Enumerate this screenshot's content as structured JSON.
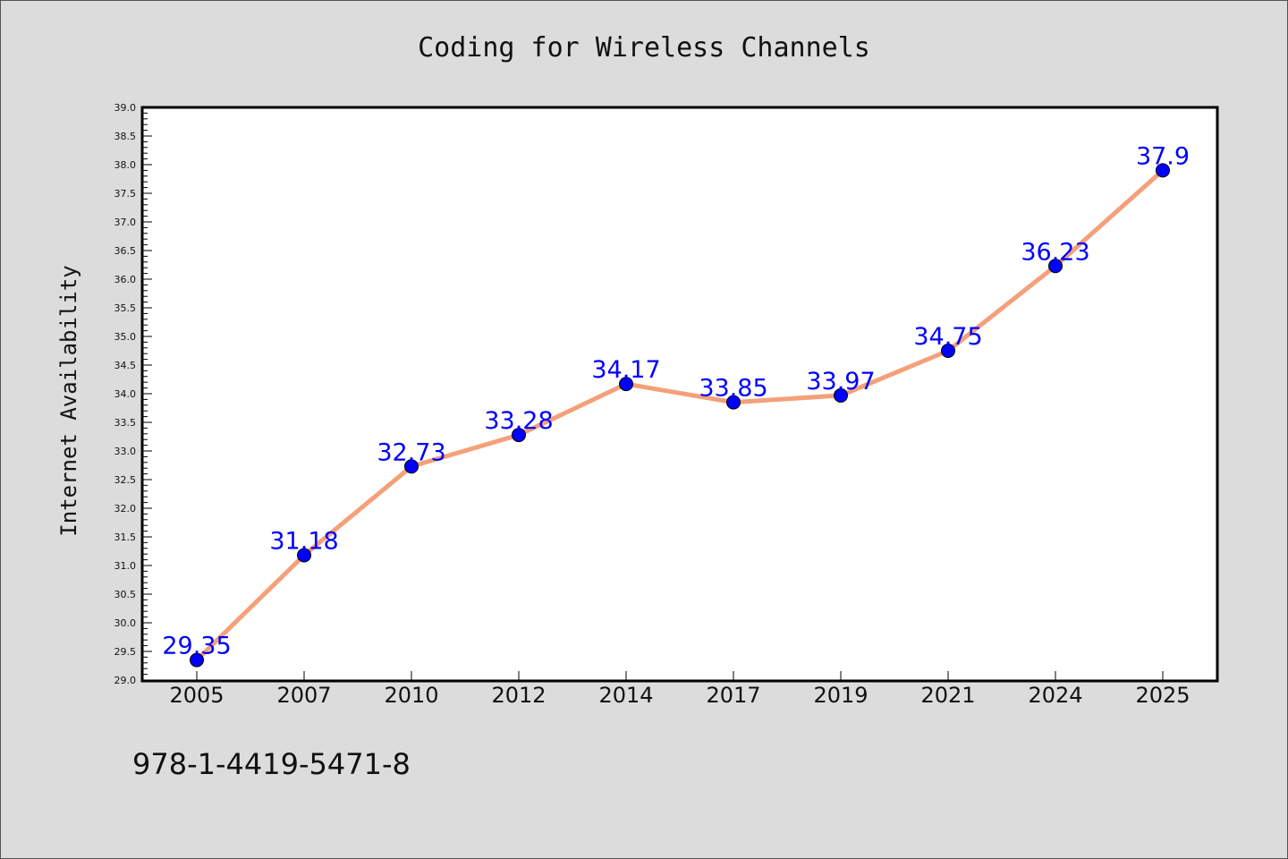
{
  "chart_data": {
    "type": "line",
    "title": "Coding for Wireless Channels",
    "xlabel": "",
    "ylabel": "Internet Availability",
    "categories": [
      "2005",
      "2007",
      "2010",
      "2012",
      "2014",
      "2017",
      "2019",
      "2021",
      "2024",
      "2025"
    ],
    "values": [
      29.35,
      31.18,
      32.73,
      33.28,
      34.17,
      33.85,
      33.97,
      34.75,
      36.23,
      37.9
    ],
    "data_labels": [
      "29.35",
      "31.18",
      "32.73",
      "33.28",
      "34.17",
      "33.85",
      "33.97",
      "34.75",
      "36.23",
      "37.9"
    ],
    "ylim": [
      29.0,
      39.0
    ],
    "yticks": [
      "29.0",
      "29.5",
      "30.0",
      "30.5",
      "31.0",
      "31.5",
      "32.0",
      "32.5",
      "33.0",
      "33.5",
      "34.0",
      "34.5",
      "35.0",
      "35.5",
      "36.0",
      "36.5",
      "37.0",
      "37.5",
      "38.0",
      "38.5",
      "39.0"
    ],
    "grid": false,
    "line_color": "#f4a07a",
    "marker_color": "#0000ff",
    "label_color": "#0000ff"
  },
  "footer": {
    "isbn": "978-1-4419-5471-8"
  }
}
